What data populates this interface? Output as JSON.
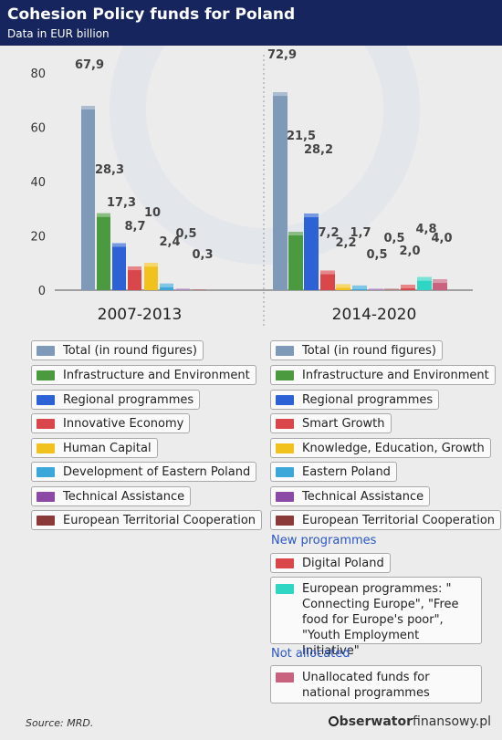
{
  "header": {
    "title": "Cohesion Policy funds for Poland",
    "subtitle": "Data in EUR billion"
  },
  "chart_data": {
    "type": "bar",
    "title": "Cohesion Policy funds for Poland",
    "subtitle": "Data in EUR billion",
    "ylim": [
      0,
      80
    ],
    "yticks": [
      "0",
      "20",
      "40",
      "60",
      "80"
    ],
    "grid": false,
    "groups": [
      {
        "label": "2007-2013",
        "bars": [
          {
            "name": "Total (in round figures)",
            "value": 67.9,
            "label": "67,9",
            "color": "#7f9ab9"
          },
          {
            "name": "Infrastructure and Environment",
            "value": 28.3,
            "label": "28,3",
            "color": "#4c9a40"
          },
          {
            "name": "Regional programmes",
            "value": 17.3,
            "label": "17,3",
            "color": "#2d62d6"
          },
          {
            "name": "Innovative Economy",
            "value": 8.7,
            "label": "8,7",
            "color": "#d9474b"
          },
          {
            "name": "Human Capital",
            "value": 10,
            "label": "10",
            "color": "#f1c21d"
          },
          {
            "name": "Development of Eastern Poland",
            "value": 2.4,
            "label": "2,4",
            "color": "#3ba8d9"
          },
          {
            "name": "Technical Assistance",
            "value": 0.5,
            "label": "0,5",
            "color": "#8a4aa5"
          },
          {
            "name": "European Territorial Cooperation",
            "value": 0.3,
            "label": "0,3",
            "color": "#8b3a3a"
          }
        ]
      },
      {
        "label": "2014-2020",
        "bars": [
          {
            "name": "Total (in round figures)",
            "value": 72.9,
            "label": "72,9",
            "color": "#7f9ab9"
          },
          {
            "name": "Infrastructure and Environment",
            "value": 21.5,
            "label": "21,5",
            "color": "#4c9a40"
          },
          {
            "name": "Regional programmes",
            "value": 28.2,
            "label": "28,2",
            "color": "#2d62d6"
          },
          {
            "name": "Smart Growth",
            "value": 7.2,
            "label": "7,2",
            "color": "#d9474b"
          },
          {
            "name": "Knowledge, Education, Growth",
            "value": 2.2,
            "label": "2,2",
            "color": "#f1c21d"
          },
          {
            "name": "Eastern Poland",
            "value": 1.7,
            "label": "1,7",
            "color": "#3ba8d9"
          },
          {
            "name": "Technical Assistance",
            "value": 0.5,
            "label": "0,5",
            "color": "#8a4aa5"
          },
          {
            "name": "European Territorial Cooperation",
            "value": 0.5,
            "label": "0,5",
            "color": "#8b3a3a"
          },
          {
            "name": "Digital Poland",
            "value": 2.0,
            "label": "2,0",
            "color": "#d9474b"
          },
          {
            "name": "European programmes: \"Connecting Europe\", \"Free food for Europe's poor\", \"Youth Employment Initiative\"",
            "value": 4.8,
            "label": "4,8",
            "color": "#2fd6c3"
          },
          {
            "name": "Unallocated funds for national programmes",
            "value": 4.0,
            "label": "4,0",
            "color": "#c8627f"
          }
        ]
      }
    ]
  },
  "legend_2007": [
    {
      "label": "Total (in round figures)",
      "color": "#7f9ab9"
    },
    {
      "label": "Infrastructure and Environment",
      "color": "#4c9a40"
    },
    {
      "label": "Regional programmes",
      "color": "#2d62d6"
    },
    {
      "label": "Innovative Economy",
      "color": "#d9474b"
    },
    {
      "label": "Human Capital",
      "color": "#f1c21d"
    },
    {
      "label": "Development of Eastern Poland",
      "color": "#3ba8d9"
    },
    {
      "label": "Technical Assistance",
      "color": "#8a4aa5"
    },
    {
      "label": "European Territorial Cooperation",
      "color": "#8b3a3a"
    }
  ],
  "legend_2014": [
    {
      "label": "Total (in round figures)",
      "color": "#7f9ab9"
    },
    {
      "label": "Infrastructure and Environment",
      "color": "#4c9a40"
    },
    {
      "label": "Regional programmes",
      "color": "#2d62d6"
    },
    {
      "label": "Smart Growth",
      "color": "#d9474b"
    },
    {
      "label": "Knowledge, Education, Growth",
      "color": "#f1c21d"
    },
    {
      "label": "Eastern Poland",
      "color": "#3ba8d9"
    },
    {
      "label": "Technical Assistance",
      "color": "#8a4aa5"
    },
    {
      "label": "European Territorial Cooperation",
      "color": "#8b3a3a"
    }
  ],
  "new_programmes_label": "New programmes",
  "legend_new": [
    {
      "label": "Digital Poland",
      "color": "#d9474b"
    },
    {
      "label": "European programmes: \" Connecting Europe\", \"Free food for Europe's poor\", \"Youth Employment Initiative\"",
      "color": "#2fd6c3"
    }
  ],
  "not_allocated_label": "Not allocated",
  "legend_unallocated": [
    {
      "label": "Unallocated funds for national programmes",
      "color": "#c8627f"
    }
  ],
  "footer": {
    "source": "Source: MRD.",
    "brand_bold": "bserwator",
    "brand_light": "finansowy.pl"
  }
}
